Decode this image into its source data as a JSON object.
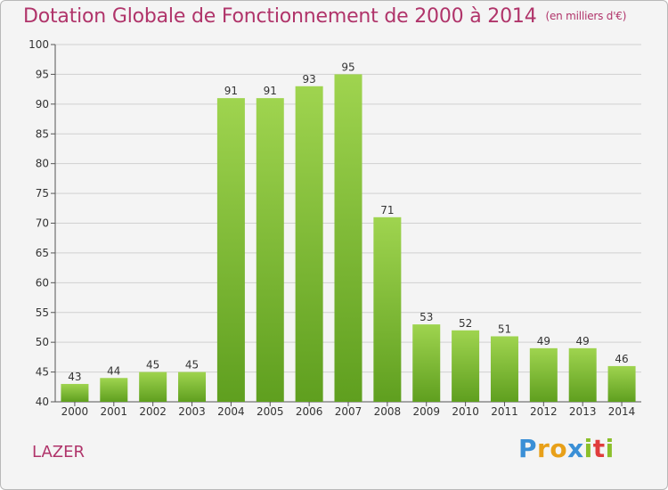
{
  "title": "Dotation Globale de Fonctionnement de 2000 à 2014",
  "subtitle": "(en milliers d'€)",
  "commune": "LAZER",
  "logo": {
    "letters": [
      "P",
      "r",
      "o",
      "x",
      "i",
      "t",
      "i"
    ],
    "colors": [
      "#3a8fd6",
      "#e8a019",
      "#e8a019",
      "#3a8fd6",
      "#8bbf2a",
      "#e03c3c",
      "#8bbf2a"
    ]
  },
  "colors": {
    "title": "#b0346a",
    "bar_top": "#9fd44f",
    "bar_bottom": "#5f9f1f",
    "grid": "#d0d0d0",
    "axis": "#555555"
  },
  "chart_data": {
    "type": "bar",
    "title": "Dotation Globale de Fonctionnement de 2000 à 2014",
    "subtitle": "(en milliers d'€)",
    "xlabel": "",
    "ylabel": "",
    "categories": [
      "2000",
      "2001",
      "2002",
      "2003",
      "2004",
      "2005",
      "2006",
      "2007",
      "2008",
      "2009",
      "2010",
      "2011",
      "2012",
      "2013",
      "2014"
    ],
    "values": [
      43,
      44,
      45,
      45,
      91,
      91,
      93,
      95,
      71,
      53,
      52,
      51,
      49,
      49,
      46
    ],
    "ylim": [
      40,
      100
    ],
    "yticks": [
      40,
      45,
      50,
      55,
      60,
      65,
      70,
      75,
      80,
      85,
      90,
      95,
      100
    ],
    "grid": true,
    "data_labels": true
  }
}
